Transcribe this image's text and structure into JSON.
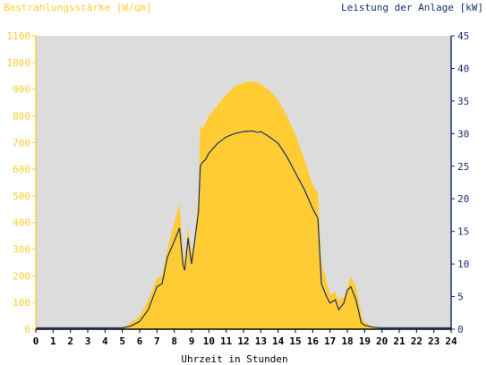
{
  "chart_data": {
    "type": "area",
    "xlabel": "Uhrzeit in Stunden",
    "ylabel_left": "Bestrahlungsstärke [W/qm]",
    "ylabel_right": "Leistung der Anlage [kW]",
    "xlim": [
      0,
      24
    ],
    "ylim_left": [
      0,
      1100
    ],
    "ylim_right": [
      0,
      45
    ],
    "x_ticks": [
      "0",
      "1",
      "2",
      "3",
      "4",
      "5",
      "6",
      "7",
      "8",
      "9",
      "10",
      "11",
      "12",
      "13",
      "14",
      "15",
      "16",
      "17",
      "18",
      "19",
      "20",
      "21",
      "22",
      "23",
      "24"
    ],
    "y_left_ticks": [
      "0",
      "100",
      "200",
      "300",
      "400",
      "500",
      "600",
      "700",
      "800",
      "900",
      "1000",
      "1100"
    ],
    "y_right_ticks": [
      "0",
      "5",
      "10",
      "15",
      "20",
      "25",
      "30",
      "35",
      "40",
      "45"
    ],
    "grid": false,
    "series": [
      {
        "name": "Bestrahlungsstärke [W/qm]",
        "axis": "left",
        "kind": "area",
        "x": [
          0,
          5.0,
          5.5,
          6.0,
          6.5,
          7.0,
          7.3,
          7.6,
          8.0,
          8.3,
          8.5,
          8.6,
          8.8,
          9.0,
          9.2,
          9.4,
          9.5,
          9.6,
          9.8,
          10.0,
          10.5,
          11.0,
          11.5,
          12.0,
          12.5,
          12.8,
          13.0,
          13.5,
          14.0,
          14.5,
          15.0,
          15.5,
          16.0,
          16.2,
          16.3,
          16.5,
          16.8,
          17.0,
          17.3,
          17.5,
          17.8,
          18.0,
          18.2,
          18.5,
          18.8,
          19.0,
          19.5,
          20.0,
          24
        ],
        "values": [
          0,
          0,
          25,
          50,
          110,
          190,
          200,
          300,
          400,
          470,
          300,
          250,
          380,
          280,
          350,
          500,
          770,
          750,
          770,
          800,
          840,
          880,
          910,
          925,
          930,
          925,
          920,
          895,
          860,
          800,
          730,
          640,
          540,
          520,
          510,
          250,
          180,
          130,
          140,
          110,
          120,
          160,
          195,
          160,
          60,
          25,
          10,
          0,
          0
        ]
      },
      {
        "name": "Leistung der Anlage [kW]",
        "axis": "right",
        "kind": "line",
        "x": [
          0,
          5.0,
          5.5,
          6.0,
          6.5,
          7.0,
          7.3,
          7.6,
          8.0,
          8.3,
          8.5,
          8.6,
          8.8,
          9.0,
          9.2,
          9.4,
          9.5,
          9.6,
          9.8,
          10.0,
          10.5,
          11.0,
          11.5,
          12.0,
          12.5,
          12.8,
          13.0,
          13.5,
          14.0,
          14.5,
          15.0,
          15.5,
          16.0,
          16.2,
          16.3,
          16.5,
          16.8,
          17.0,
          17.3,
          17.5,
          17.8,
          18.0,
          18.2,
          18.5,
          18.8,
          19.0,
          19.5,
          20.0,
          24
        ],
        "values": [
          0.2,
          0.2,
          0.5,
          1.2,
          3.0,
          6.5,
          7.0,
          11.0,
          13.5,
          15.5,
          10.0,
          9.0,
          14.0,
          10.0,
          14.0,
          18.0,
          25.0,
          25.5,
          26.0,
          27.0,
          28.5,
          29.5,
          30.0,
          30.3,
          30.4,
          30.2,
          30.3,
          29.5,
          28.5,
          26.5,
          24.0,
          21.5,
          18.5,
          17.5,
          17.0,
          7.0,
          5.0,
          4.0,
          4.5,
          3.0,
          4.0,
          6.0,
          6.5,
          4.5,
          1.0,
          0.6,
          0.3,
          0.2,
          0.2
        ]
      }
    ],
    "colors": {
      "area_fill": "#ffcc33",
      "line": "#1a2f6b",
      "plot_bg": "#dcdcdc",
      "left_axis_text": "#ffcc33",
      "right_axis_text": "#1a2f6b"
    }
  }
}
